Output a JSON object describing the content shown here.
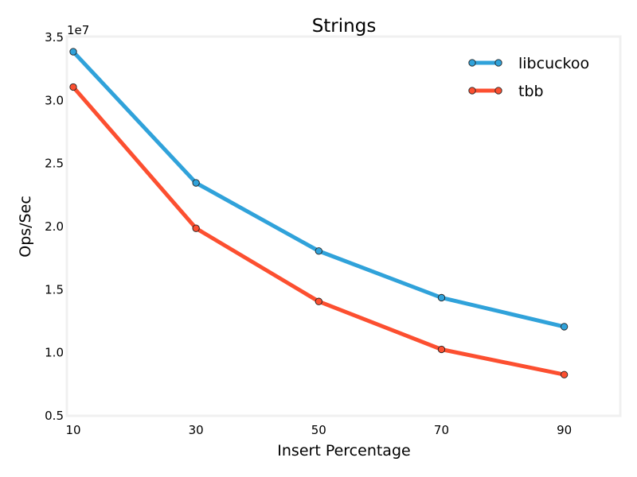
{
  "chart_data": {
    "type": "line",
    "title": "Strings",
    "xlabel": "Insert Percentage",
    "ylabel": "Ops/Sec",
    "y_offset_label": "1e7",
    "x": [
      10,
      30,
      50,
      70,
      90
    ],
    "xticks": [
      10,
      30,
      50,
      70,
      90
    ],
    "xtick_labels": [
      "10",
      "30",
      "50",
      "70",
      "90"
    ],
    "xlim": [
      10,
      99
    ],
    "yticks": [
      0.5,
      1.0,
      1.5,
      2.0,
      2.5,
      3.0,
      3.5
    ],
    "ytick_labels": [
      "0.5",
      "1.0",
      "1.5",
      "2.0",
      "2.5",
      "3.0",
      "3.5"
    ],
    "ylim": [
      0.5,
      3.5
    ],
    "grid": false,
    "legend_position": "top-right",
    "series": [
      {
        "name": "libcuckoo",
        "color": "#30a2da",
        "values": [
          3.38,
          2.34,
          1.8,
          1.43,
          1.2
        ]
      },
      {
        "name": "tbb",
        "color": "#fc4f30",
        "values": [
          3.1,
          1.98,
          1.4,
          1.02,
          0.82
        ]
      }
    ]
  }
}
